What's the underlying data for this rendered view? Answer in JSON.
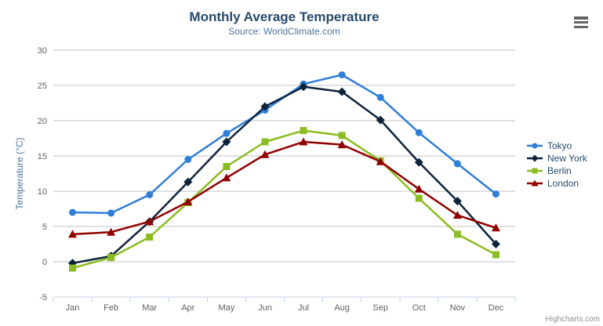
{
  "chart_data": {
    "type": "line",
    "title": "Monthly Average Temperature",
    "subtitle": "Source: WorldClimate.com",
    "xlabel": "",
    "ylabel": "Temperature (°C)",
    "ylim": [
      -5,
      30
    ],
    "y_tick_interval": 5,
    "grid": true,
    "legend_position": "right",
    "categories": [
      "Jan",
      "Feb",
      "Mar",
      "Apr",
      "May",
      "Jun",
      "Jul",
      "Aug",
      "Sep",
      "Oct",
      "Nov",
      "Dec"
    ],
    "series": [
      {
        "name": "Tokyo",
        "color": "#2f7ed8",
        "marker": "circle",
        "values": [
          7.0,
          6.9,
          9.5,
          14.5,
          18.2,
          21.5,
          25.2,
          26.5,
          23.3,
          18.3,
          13.9,
          9.6
        ]
      },
      {
        "name": "New York",
        "color": "#0d233a",
        "marker": "diamond",
        "values": [
          -0.2,
          0.8,
          5.7,
          11.3,
          17.0,
          22.0,
          24.8,
          24.1,
          20.1,
          14.1,
          8.6,
          2.5
        ]
      },
      {
        "name": "Berlin",
        "color": "#8bbc21",
        "marker": "square",
        "values": [
          -0.9,
          0.6,
          3.5,
          8.4,
          13.5,
          17.0,
          18.6,
          17.9,
          14.3,
          9.0,
          3.9,
          1.0
        ]
      },
      {
        "name": "London",
        "color": "#910000",
        "marker": "triangle",
        "values": [
          3.9,
          4.2,
          5.7,
          8.5,
          11.9,
          15.2,
          17.0,
          16.6,
          14.2,
          10.3,
          6.6,
          4.8
        ]
      }
    ]
  },
  "colors": {
    "title": "#274b6d",
    "subtitle": "#4d759e",
    "axis_title": "#4d759e",
    "axis_label": "#606060",
    "grid_line": "#c0c0c0",
    "axis_line": "#c0d0e0",
    "legend_text": "#274b6d",
    "credits": "#909090",
    "menu_icon": "#666666",
    "background": "#ffffff"
  },
  "icons": {
    "menu": "hamburger-icon"
  },
  "credits": {
    "label": "Highcharts.com"
  }
}
